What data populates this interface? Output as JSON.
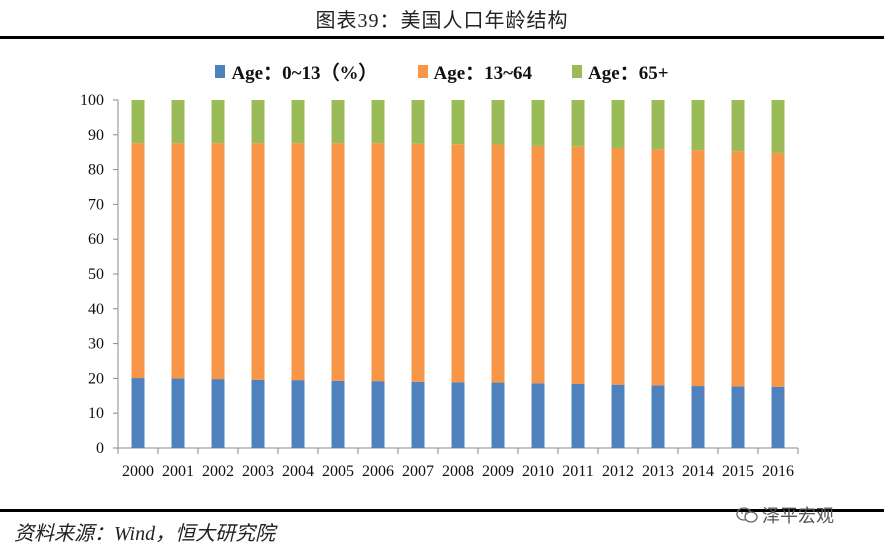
{
  "page": {
    "title": "图表39：美国人口年龄结构",
    "source": "资料来源：Wind，恒大研究院",
    "watermark": "泽平宏观"
  },
  "colors": {
    "age_0_13": "#4f81bd",
    "age_13_64": "#f79646",
    "age_65_plus": "#9bbb59"
  },
  "chart_data": {
    "type": "bar",
    "stacked": true,
    "title": "图表39：美国人口年龄结构",
    "xlabel": "",
    "ylabel": "",
    "ylim": [
      0,
      100
    ],
    "yticks": [
      0,
      10,
      20,
      30,
      40,
      50,
      60,
      70,
      80,
      90,
      100
    ],
    "legend_position": "top-center",
    "grid": false,
    "categories": [
      "2000",
      "2001",
      "2002",
      "2003",
      "2004",
      "2005",
      "2006",
      "2007",
      "2008",
      "2009",
      "2010",
      "2011",
      "2012",
      "2013",
      "2014",
      "2015",
      "2016"
    ],
    "series": [
      {
        "name": "Age：0~13（%）",
        "color": "#4f81bd",
        "values": [
          20.1,
          20.0,
          19.8,
          19.6,
          19.5,
          19.3,
          19.2,
          19.0,
          18.9,
          18.8,
          18.6,
          18.4,
          18.2,
          18.0,
          17.8,
          17.7,
          17.6
        ]
      },
      {
        "name": "Age：13~64",
        "color": "#f79646",
        "values": [
          67.5,
          67.6,
          67.8,
          68.0,
          68.1,
          68.3,
          68.4,
          68.4,
          68.4,
          68.4,
          68.2,
          68.3,
          68.0,
          67.9,
          67.8,
          67.6,
          67.2
        ]
      },
      {
        "name": "Age：65+",
        "color": "#9bbb59",
        "values": [
          12.4,
          12.4,
          12.4,
          12.4,
          12.4,
          12.4,
          12.4,
          12.6,
          12.7,
          12.8,
          13.2,
          13.3,
          13.8,
          14.1,
          14.4,
          14.7,
          15.2
        ]
      }
    ]
  }
}
